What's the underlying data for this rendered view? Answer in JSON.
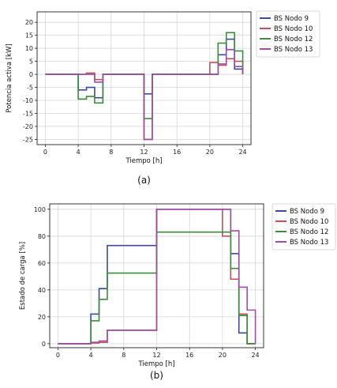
{
  "chart_data": [
    {
      "type": "line",
      "caption": "(a)",
      "xlabel": "Tiempo [h]",
      "ylabel": "Potencia activa [kW]",
      "xlim": [
        -1,
        25
      ],
      "ylim": [
        -27,
        24
      ],
      "xticks": [
        0,
        4,
        8,
        12,
        16,
        20,
        24
      ],
      "yticks": [
        20,
        15,
        10,
        5,
        0,
        -5,
        -10,
        -15,
        -20,
        -25
      ],
      "grid": true,
      "step": "post",
      "legend_position": "outside-right-top",
      "series": [
        {
          "name": "BS Nodo 9",
          "color": "#3b4a9a",
          "x": [
            0,
            4,
            5,
            6,
            7,
            12,
            13,
            20,
            21,
            22,
            23,
            24
          ],
          "y": [
            0,
            -6,
            -5,
            -9,
            0,
            -7.5,
            0,
            0,
            7.5,
            13.5,
            2,
            0
          ]
        },
        {
          "name": "BS Nodo 10",
          "color": "#c0505a",
          "x": [
            0,
            4,
            5,
            6,
            7,
            12,
            13,
            20,
            21,
            22,
            23,
            24
          ],
          "y": [
            0,
            0,
            0.5,
            -2,
            0,
            -25,
            0,
            4.5,
            3.5,
            6,
            5,
            0
          ]
        },
        {
          "name": "BS Nodo 12",
          "color": "#3c8c3c",
          "x": [
            0,
            4,
            5,
            6,
            7,
            12,
            13,
            20,
            21,
            22,
            23,
            24
          ],
          "y": [
            0,
            -9.5,
            -8.5,
            -11,
            0,
            -17,
            0,
            0,
            12,
            16,
            9,
            0
          ]
        },
        {
          "name": "BS Nodo 13",
          "color": "#9b4fa0",
          "x": [
            0,
            4,
            5,
            6,
            7,
            12,
            13,
            20,
            21,
            22,
            23,
            24
          ],
          "y": [
            0,
            0,
            0,
            -3,
            0,
            -25,
            0,
            0,
            4,
            9.5,
            3,
            0
          ]
        }
      ]
    },
    {
      "type": "line",
      "caption": "(b)",
      "xlabel": "Tiempo [h]",
      "ylabel": "Estado de carga [%]",
      "xlim": [
        -1,
        25
      ],
      "ylim": [
        -3,
        104
      ],
      "xticks": [
        0,
        4,
        8,
        12,
        16,
        20,
        24
      ],
      "yticks": [
        0,
        20,
        40,
        60,
        80,
        100
      ],
      "grid": true,
      "step": "post",
      "legend_position": "outside-right-top",
      "series": [
        {
          "name": "BS Nodo 9",
          "color": "#3b4a9a",
          "x": [
            0,
            4,
            5,
            6,
            12,
            20,
            21,
            22,
            23,
            24
          ],
          "y": [
            0,
            22,
            41,
            73,
            100,
            100,
            67,
            8,
            0,
            0
          ]
        },
        {
          "name": "BS Nodo 10",
          "color": "#c0505a",
          "x": [
            0,
            4,
            5,
            6,
            12,
            20,
            21,
            22,
            23,
            24
          ],
          "y": [
            0,
            0.5,
            1,
            10,
            100,
            80,
            48,
            22,
            0,
            0
          ]
        },
        {
          "name": "BS Nodo 12",
          "color": "#3c8c3c",
          "x": [
            0,
            4,
            5,
            6,
            12,
            20,
            21,
            22,
            23,
            24
          ],
          "y": [
            0,
            17,
            33,
            52.5,
            83,
            83,
            56,
            21,
            0,
            0
          ]
        },
        {
          "name": "BS Nodo 13",
          "color": "#9b4fa0",
          "x": [
            0,
            4,
            5,
            6,
            12,
            20,
            21,
            22,
            23,
            24
          ],
          "y": [
            0,
            1,
            2,
            10,
            100,
            100,
            84,
            42,
            25,
            0
          ]
        }
      ]
    }
  ]
}
